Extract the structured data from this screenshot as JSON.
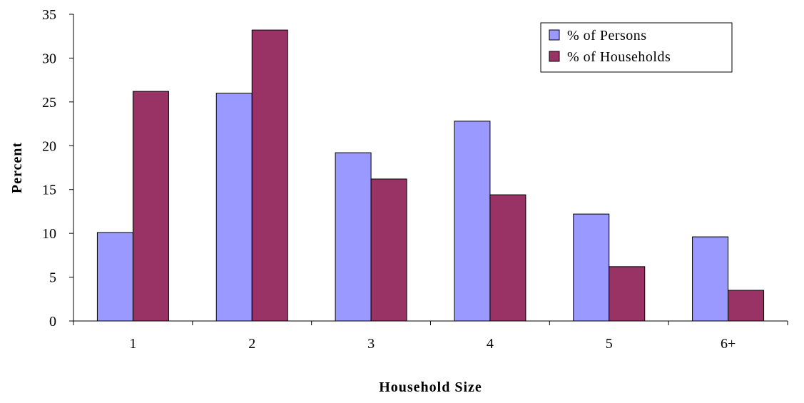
{
  "chart_data": {
    "type": "bar",
    "title": "",
    "xlabel": "Household Size",
    "ylabel": "Percent",
    "categories": [
      "1",
      "2",
      "3",
      "4",
      "5",
      "6+"
    ],
    "ylim": [
      0,
      35
    ],
    "yticks": [
      0,
      5,
      10,
      15,
      20,
      25,
      30,
      35
    ],
    "grid": false,
    "legend_position": "top-right",
    "series": [
      {
        "name": "% of Persons",
        "color": "#9999ff",
        "values": [
          10.1,
          26.0,
          19.2,
          22.8,
          12.2,
          9.6
        ]
      },
      {
        "name": "% of Households",
        "color": "#993366",
        "values": [
          26.2,
          33.2,
          16.2,
          14.4,
          6.2,
          3.5
        ]
      }
    ]
  }
}
